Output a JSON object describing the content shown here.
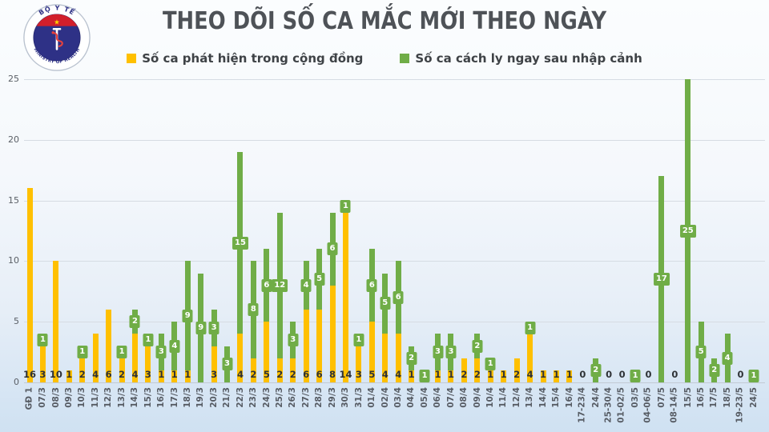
{
  "slide": {
    "title": "THEO DÕI SỐ CA MẮC MỚI THEO NGÀY",
    "logo": {
      "top_text": "BỘ Y TẾ",
      "bottom_text": "MINISTRY OF HEALTH"
    }
  },
  "legend": [
    {
      "label": "Số ca phát hiện trong cộng đồng",
      "color": "#FFC000"
    },
    {
      "label": "Số ca cách ly ngay sau nhập cảnh",
      "color": "#70AD47"
    }
  ],
  "chart_data": {
    "type": "bar",
    "stacked": true,
    "title": "THEO DÕI SỐ CA MẮC MỚI THEO NGÀY",
    "ylim": [
      0,
      25
    ],
    "yticks": [
      0,
      5,
      10,
      15,
      20,
      25
    ],
    "grid": true,
    "legend_position": "top",
    "categories": [
      "GĐ 1",
      "07/3",
      "08/3",
      "09/3",
      "10/3",
      "11/3",
      "12/3",
      "13/3",
      "14/3",
      "15/3",
      "16/3",
      "17/3",
      "18/3",
      "19/3",
      "20/3",
      "21/3",
      "22/3",
      "23/3",
      "24/3",
      "25/3",
      "26/3",
      "27/3",
      "28/3",
      "29/3",
      "30/3",
      "31/3",
      "01/4",
      "02/4",
      "03/4",
      "04/4",
      "05/4",
      "06/4",
      "07/4",
      "08/4",
      "09/4",
      "10/4",
      "11/4",
      "12/4",
      "13/4",
      "14/4",
      "15/4",
      "16/4",
      "17-23/4",
      "24/4",
      "25-30/4",
      "01-02/5",
      "03/5",
      "04-06/5",
      "07/5",
      "08-14/5",
      "15/5",
      "16/5",
      "17/5",
      "18/5",
      "19-23/5",
      "24/5"
    ],
    "series": [
      {
        "name": "Số ca phát hiện trong cộng đồng",
        "color": "#FFC000",
        "values": [
          16,
          3,
          10,
          1,
          2,
          4,
          6,
          2,
          4,
          3,
          1,
          1,
          1,
          0,
          3,
          0,
          4,
          2,
          5,
          2,
          2,
          6,
          6,
          8,
          14,
          3,
          5,
          4,
          4,
          1,
          0,
          1,
          1,
          2,
          2,
          1,
          1,
          2,
          4,
          1,
          1,
          1,
          0,
          0,
          0,
          0,
          0,
          0,
          0,
          0,
          0,
          0,
          0,
          0,
          0,
          0
        ]
      },
      {
        "name": "Số ca cách ly ngay sau nhập cảnh",
        "color": "#70AD47",
        "values": [
          0,
          1,
          0,
          0,
          1,
          0,
          0,
          1,
          2,
          1,
          3,
          4,
          9,
          9,
          3,
          3,
          15,
          8,
          6,
          12,
          3,
          4,
          5,
          6,
          1,
          1,
          6,
          5,
          6,
          2,
          1,
          3,
          3,
          0,
          2,
          1,
          0,
          0,
          1,
          0,
          0,
          0,
          0,
          2,
          0,
          0,
          1,
          0,
          17,
          0,
          25,
          5,
          2,
          4,
          0,
          1
        ]
      }
    ],
    "bottom_labels": [
      "16",
      "3",
      "10",
      "1",
      "2",
      "4",
      "6",
      "2",
      "4",
      "3",
      "1",
      "1",
      "1",
      "",
      "3",
      "",
      "4",
      "2",
      "5",
      "2",
      "2",
      "6",
      "6",
      "8",
      "14",
      "3",
      "5",
      "4",
      "4",
      "1",
      "",
      "1",
      "1",
      "2",
      "2",
      "1",
      "1",
      "2",
      "4",
      "1",
      "1",
      "1",
      "0",
      "",
      "0",
      "0",
      "",
      "0",
      "",
      "0",
      "",
      "",
      "",
      "",
      "0",
      ""
    ],
    "green_labels": [
      "",
      "1",
      "",
      "",
      "1",
      "",
      "",
      "1",
      "2",
      "1",
      "3",
      "4",
      "9",
      "9",
      "3",
      "3",
      "15",
      "8",
      "6",
      "12",
      "3",
      "4",
      "5",
      "6",
      "1",
      "1",
      "6",
      "5",
      "6",
      "2",
      "1",
      "3",
      "3",
      "",
      "2",
      "1",
      "",
      "",
      "1",
      "",
      "",
      "",
      "",
      "2",
      "",
      "",
      "1",
      "",
      "17",
      "",
      "25",
      "5",
      "2",
      "4",
      "",
      "1"
    ]
  }
}
